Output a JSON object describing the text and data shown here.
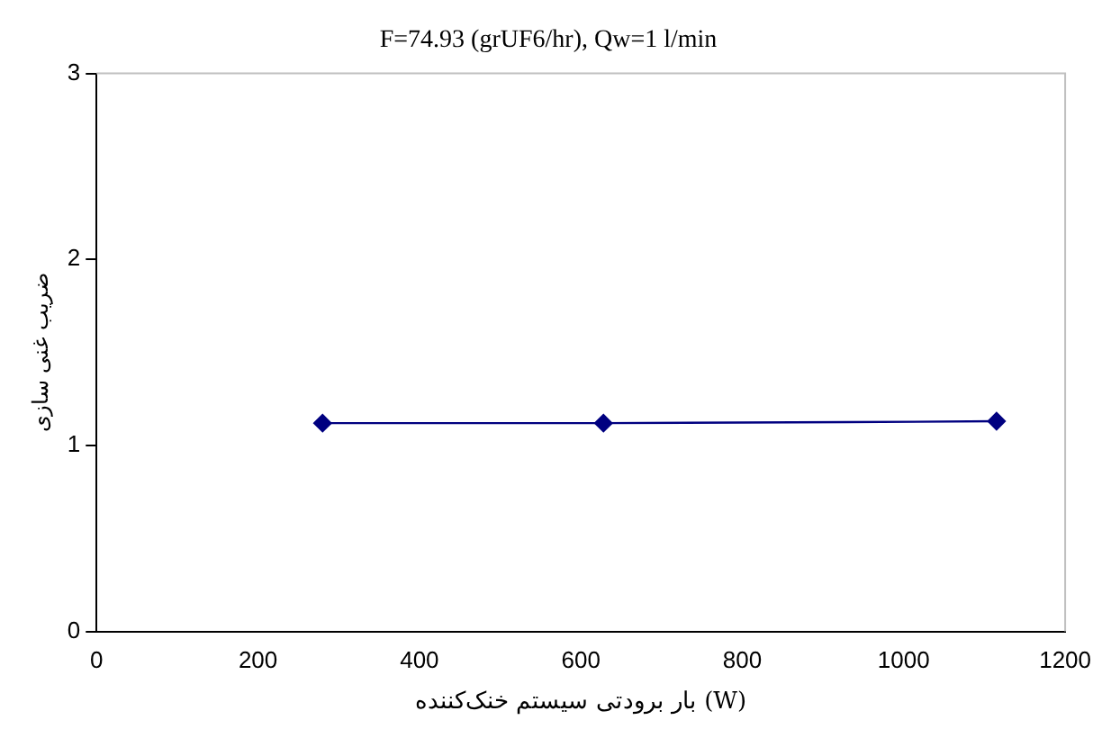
{
  "chart_data": {
    "type": "line",
    "title": "F=74.93 (grUF6/hr), Qw=1 l/min",
    "xlabel": "بار برودتی سیستم خنک‌کننده (W)",
    "ylabel": "ضریب غنی سازی",
    "x": [
      280,
      628,
      1115
    ],
    "series": [
      {
        "color": "#000080",
        "values": [
          1.12,
          1.12,
          1.13
        ]
      }
    ],
    "xlim": [
      0,
      1200
    ],
    "xticks": [
      0,
      200,
      400,
      600,
      800,
      1000,
      1200
    ],
    "ylim": [
      0,
      3
    ],
    "yticks": [
      0,
      1,
      2,
      3
    ],
    "grid": false,
    "legend": false,
    "marker": "diamond",
    "line_style": "solid"
  }
}
